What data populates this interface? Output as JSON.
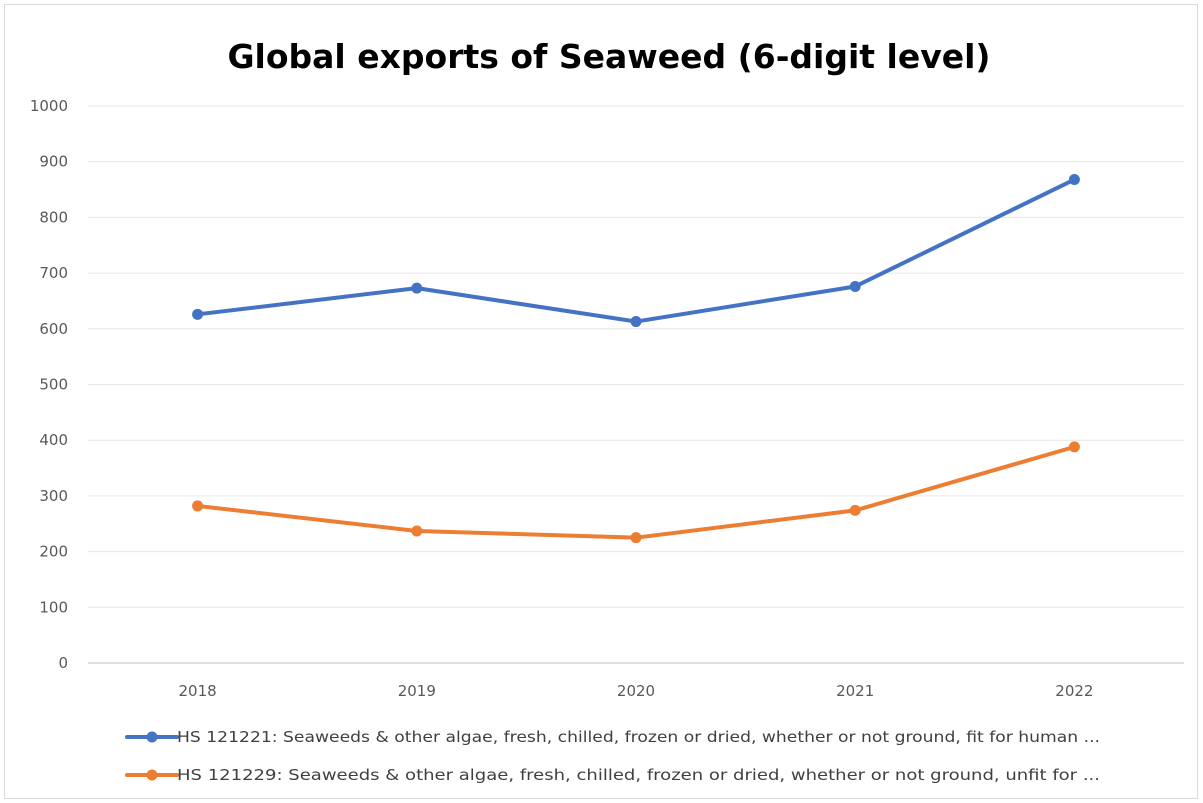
{
  "chart_data": {
    "type": "line",
    "title": "Global exports of Seaweed (6-digit level)",
    "xlabel": "",
    "ylabel": "",
    "categories": [
      "2018",
      "2019",
      "2020",
      "2021",
      "2022"
    ],
    "yticks": [
      "0",
      "100",
      "200",
      "300",
      "400",
      "500",
      "600",
      "700",
      "800",
      "900",
      "1000"
    ],
    "ylim": [
      0,
      1000
    ],
    "grid": true,
    "legend_position": "bottom",
    "series": [
      {
        "name": "HS 121221: Seaweeds & other algae, fresh, chilled, frozen or dried, whether or not ground, fit for human ...",
        "color": "#4472c4",
        "values": [
          626,
          673,
          613,
          676,
          868
        ]
      },
      {
        "name": "HS 121229: Seaweeds & other algae, fresh, chilled, frozen or dried, whether or not ground, unfit for ...",
        "color": "#ed7d31",
        "values": [
          282,
          237,
          225,
          274,
          388
        ]
      }
    ]
  }
}
